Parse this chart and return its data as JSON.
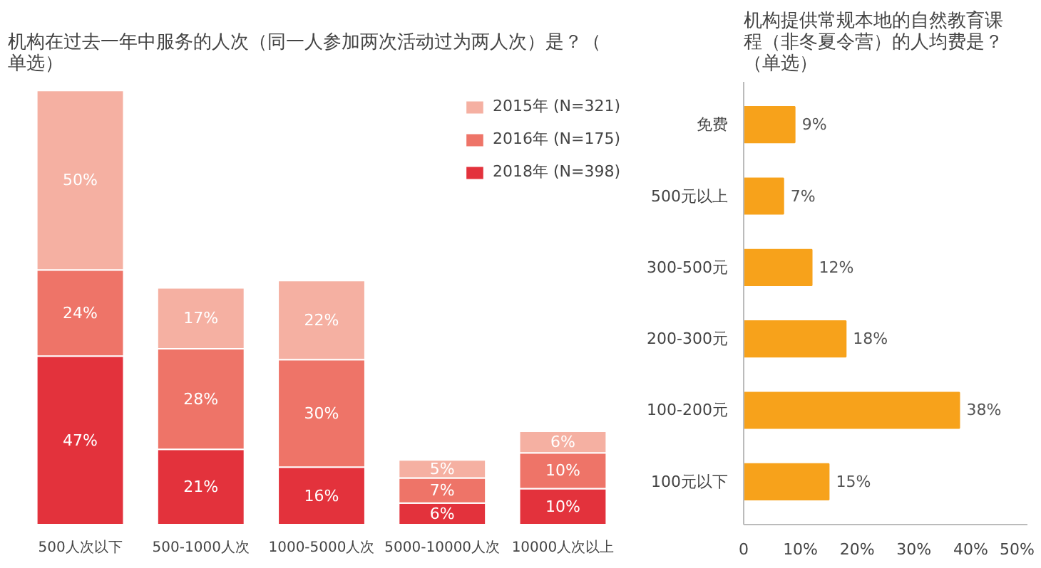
{
  "chart_data": [
    {
      "type": "bar",
      "title": "机构在过去一年中服务的人次（同一人参加两次活动过为两人次）是？（单选）",
      "stacked": true,
      "legend": "top right",
      "categories": [
        "500人次以下",
        "500-1000人次",
        "1000-5000人次",
        "5000-10000人次",
        "10000人次以上"
      ],
      "series": [
        {
          "name": "2018年 (N=398)",
          "color": "#e3323c",
          "values": [
            47,
            21,
            16,
            6,
            10
          ],
          "value_labels": [
            "47%",
            "21%",
            "16%",
            "6%",
            "10%"
          ]
        },
        {
          "name": "2016年 (N=175)",
          "color": "#ee7468",
          "values": [
            24,
            28,
            30,
            7,
            10
          ],
          "value_labels": [
            "24%",
            "28%",
            "30%",
            "7%",
            "10%"
          ]
        },
        {
          "name": "2015年 (N=321)",
          "color": "#f5b0a2",
          "values": [
            50,
            17,
            22,
            5,
            6
          ],
          "value_labels": [
            "50%",
            "17%",
            "22%",
            "5%",
            "6%"
          ]
        }
      ]
    },
    {
      "type": "bar",
      "orientation": "horizontal",
      "title": "机构提供常规本地的自然教育课程（非冬夏令营）的人均费是？（单选）",
      "categories": [
        "免费",
        "500元以上",
        "300-500元",
        "200-300元",
        "100-200元",
        "100元以下"
      ],
      "values": [
        9,
        7,
        12,
        18,
        38,
        15
      ],
      "value_labels": [
        "9%",
        "7%",
        "12%",
        "18%",
        "38%",
        "15%"
      ],
      "color": "#f7a21b",
      "xlim": [
        0,
        50
      ],
      "xticks": [
        {
          "value": 0,
          "label": "0"
        },
        {
          "value": 10,
          "label": "10%"
        },
        {
          "value": 20,
          "label": "20%"
        },
        {
          "value": 30,
          "label": "30%"
        },
        {
          "value": 40,
          "label": "40%"
        },
        {
          "value": 50,
          "label": "50%"
        }
      ],
      "grid": false
    }
  ]
}
